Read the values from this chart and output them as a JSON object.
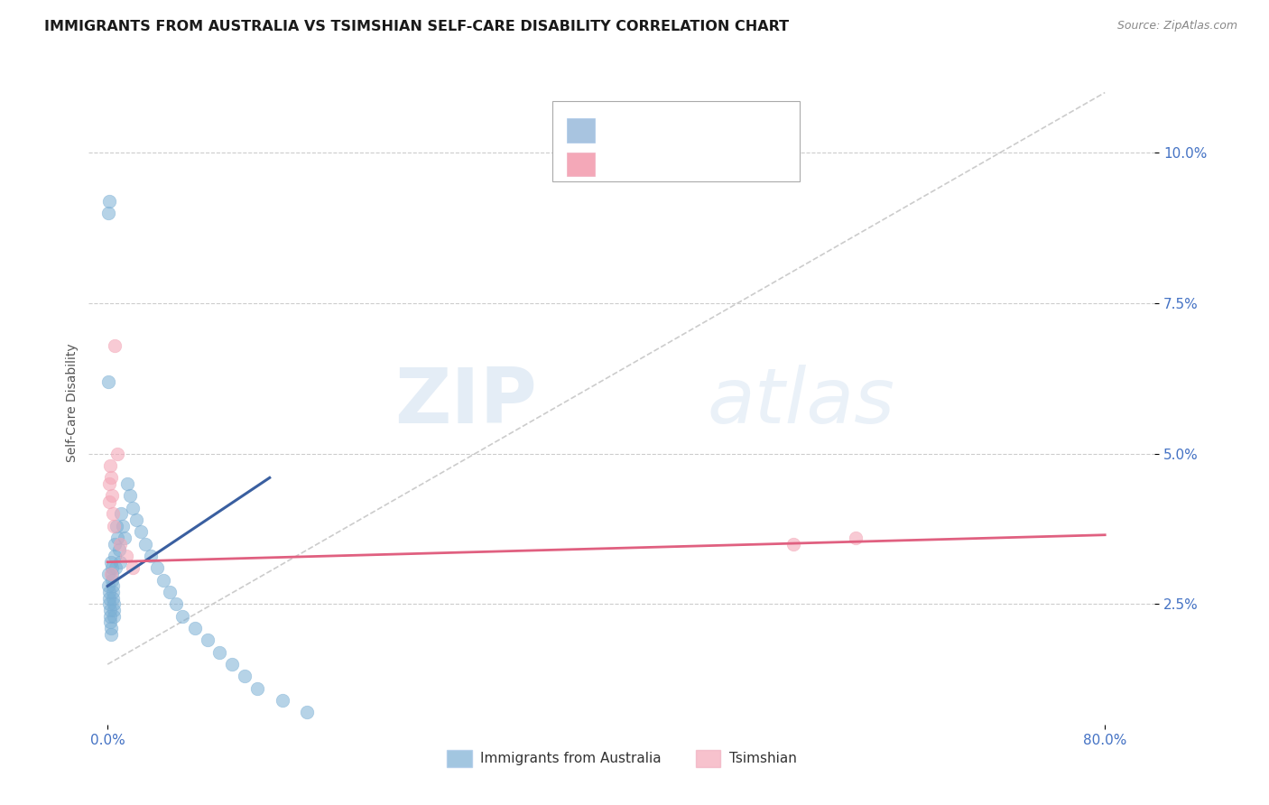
{
  "title": "IMMIGRANTS FROM AUSTRALIA VS TSIMSHIAN SELF-CARE DISABILITY CORRELATION CHART",
  "source": "Source: ZipAtlas.com",
  "ylabel": "Self-Care Disability",
  "x_tick_labels": [
    "0.0%",
    "80.0%"
  ],
  "x_tick_positions": [
    0.0,
    80.0
  ],
  "y_tick_labels": [
    "2.5%",
    "5.0%",
    "7.5%",
    "10.0%"
  ],
  "y_tick_positions": [
    2.5,
    5.0,
    7.5,
    10.0
  ],
  "xlim": [
    -1.5,
    84.0
  ],
  "ylim": [
    0.5,
    11.2
  ],
  "blue_scatter_x": [
    0.05,
    0.08,
    0.1,
    0.12,
    0.15,
    0.18,
    0.2,
    0.22,
    0.25,
    0.28,
    0.3,
    0.32,
    0.35,
    0.38,
    0.4,
    0.42,
    0.45,
    0.48,
    0.5,
    0.52,
    0.55,
    0.6,
    0.65,
    0.7,
    0.8,
    0.9,
    1.0,
    1.1,
    1.2,
    1.4,
    1.6,
    1.8,
    2.0,
    2.3,
    2.7,
    3.0,
    3.5,
    4.0,
    4.5,
    5.0,
    5.5,
    6.0,
    7.0,
    8.0,
    9.0,
    10.0,
    11.0,
    12.0,
    14.0,
    16.0,
    0.06,
    0.09,
    0.14
  ],
  "blue_scatter_y": [
    3.0,
    2.8,
    2.7,
    2.6,
    2.5,
    2.4,
    2.3,
    2.2,
    2.1,
    2.0,
    3.2,
    3.1,
    3.0,
    2.9,
    2.8,
    2.7,
    2.6,
    2.5,
    2.4,
    2.3,
    3.5,
    3.3,
    3.1,
    3.8,
    3.6,
    3.4,
    3.2,
    4.0,
    3.8,
    3.6,
    4.5,
    4.3,
    4.1,
    3.9,
    3.7,
    3.5,
    3.3,
    3.1,
    2.9,
    2.7,
    2.5,
    2.3,
    2.1,
    1.9,
    1.7,
    1.5,
    1.3,
    1.1,
    0.9,
    0.7,
    6.2,
    9.0,
    9.2
  ],
  "pink_scatter_x": [
    0.1,
    0.15,
    0.2,
    0.25,
    0.3,
    0.35,
    0.4,
    0.5,
    0.6,
    0.8,
    1.0,
    1.5,
    2.0,
    55.0,
    60.0
  ],
  "pink_scatter_y": [
    4.5,
    4.2,
    4.8,
    3.0,
    4.6,
    4.3,
    4.0,
    3.8,
    6.8,
    5.0,
    3.5,
    3.3,
    3.1,
    3.5,
    3.6
  ],
  "blue_line_x0": 0.0,
  "blue_line_x1": 13.0,
  "blue_line_y0": 2.8,
  "blue_line_y1": 4.6,
  "pink_line_x0": 0.0,
  "pink_line_x1": 80.0,
  "pink_line_y0": 3.2,
  "pink_line_y1": 3.65,
  "diag_line_x": [
    0.0,
    80.0
  ],
  "diag_line_y": [
    1.5,
    11.0
  ],
  "watermark_zip": "ZIP",
  "watermark_atlas": "atlas",
  "grid_color": "#cccccc",
  "blue_color": "#7bafd4",
  "pink_color": "#f4a8b8",
  "blue_line_color": "#3a5fa0",
  "pink_line_color": "#e06080",
  "title_fontsize": 11.5,
  "axis_label_fontsize": 10,
  "tick_fontsize": 11,
  "tick_color": "#4472c4",
  "legend_color": "#4472c4",
  "bottom_legend_labels": [
    "Immigrants from Australia",
    "Tsimshian"
  ]
}
